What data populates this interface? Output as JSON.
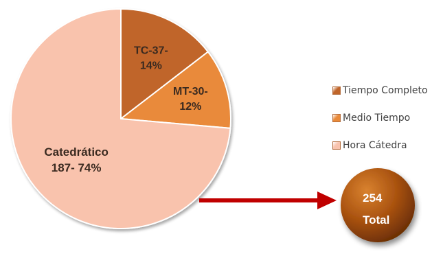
{
  "chart_data": {
    "type": "pie",
    "categories": [
      "Tiempo Completo",
      "Medio Tiempo",
      "Hora Cátedra"
    ],
    "values": [
      37,
      30,
      187
    ],
    "percents": [
      14,
      12,
      74
    ],
    "slice_labels": [
      [
        "TC-37-",
        "14%"
      ],
      [
        "MT-30-",
        "12%"
      ],
      [
        "Catedrático",
        "187- 74%"
      ]
    ],
    "colors": [
      "#c0652a",
      "#e98a3a",
      "#f9c3ad"
    ],
    "legend": {
      "position": "right",
      "entries": [
        "Tiempo Completo",
        "Medio Tiempo",
        "Hora Cátedra"
      ]
    },
    "total": {
      "value": "254",
      "label": "Total"
    },
    "arrow_color": "#c00000"
  }
}
